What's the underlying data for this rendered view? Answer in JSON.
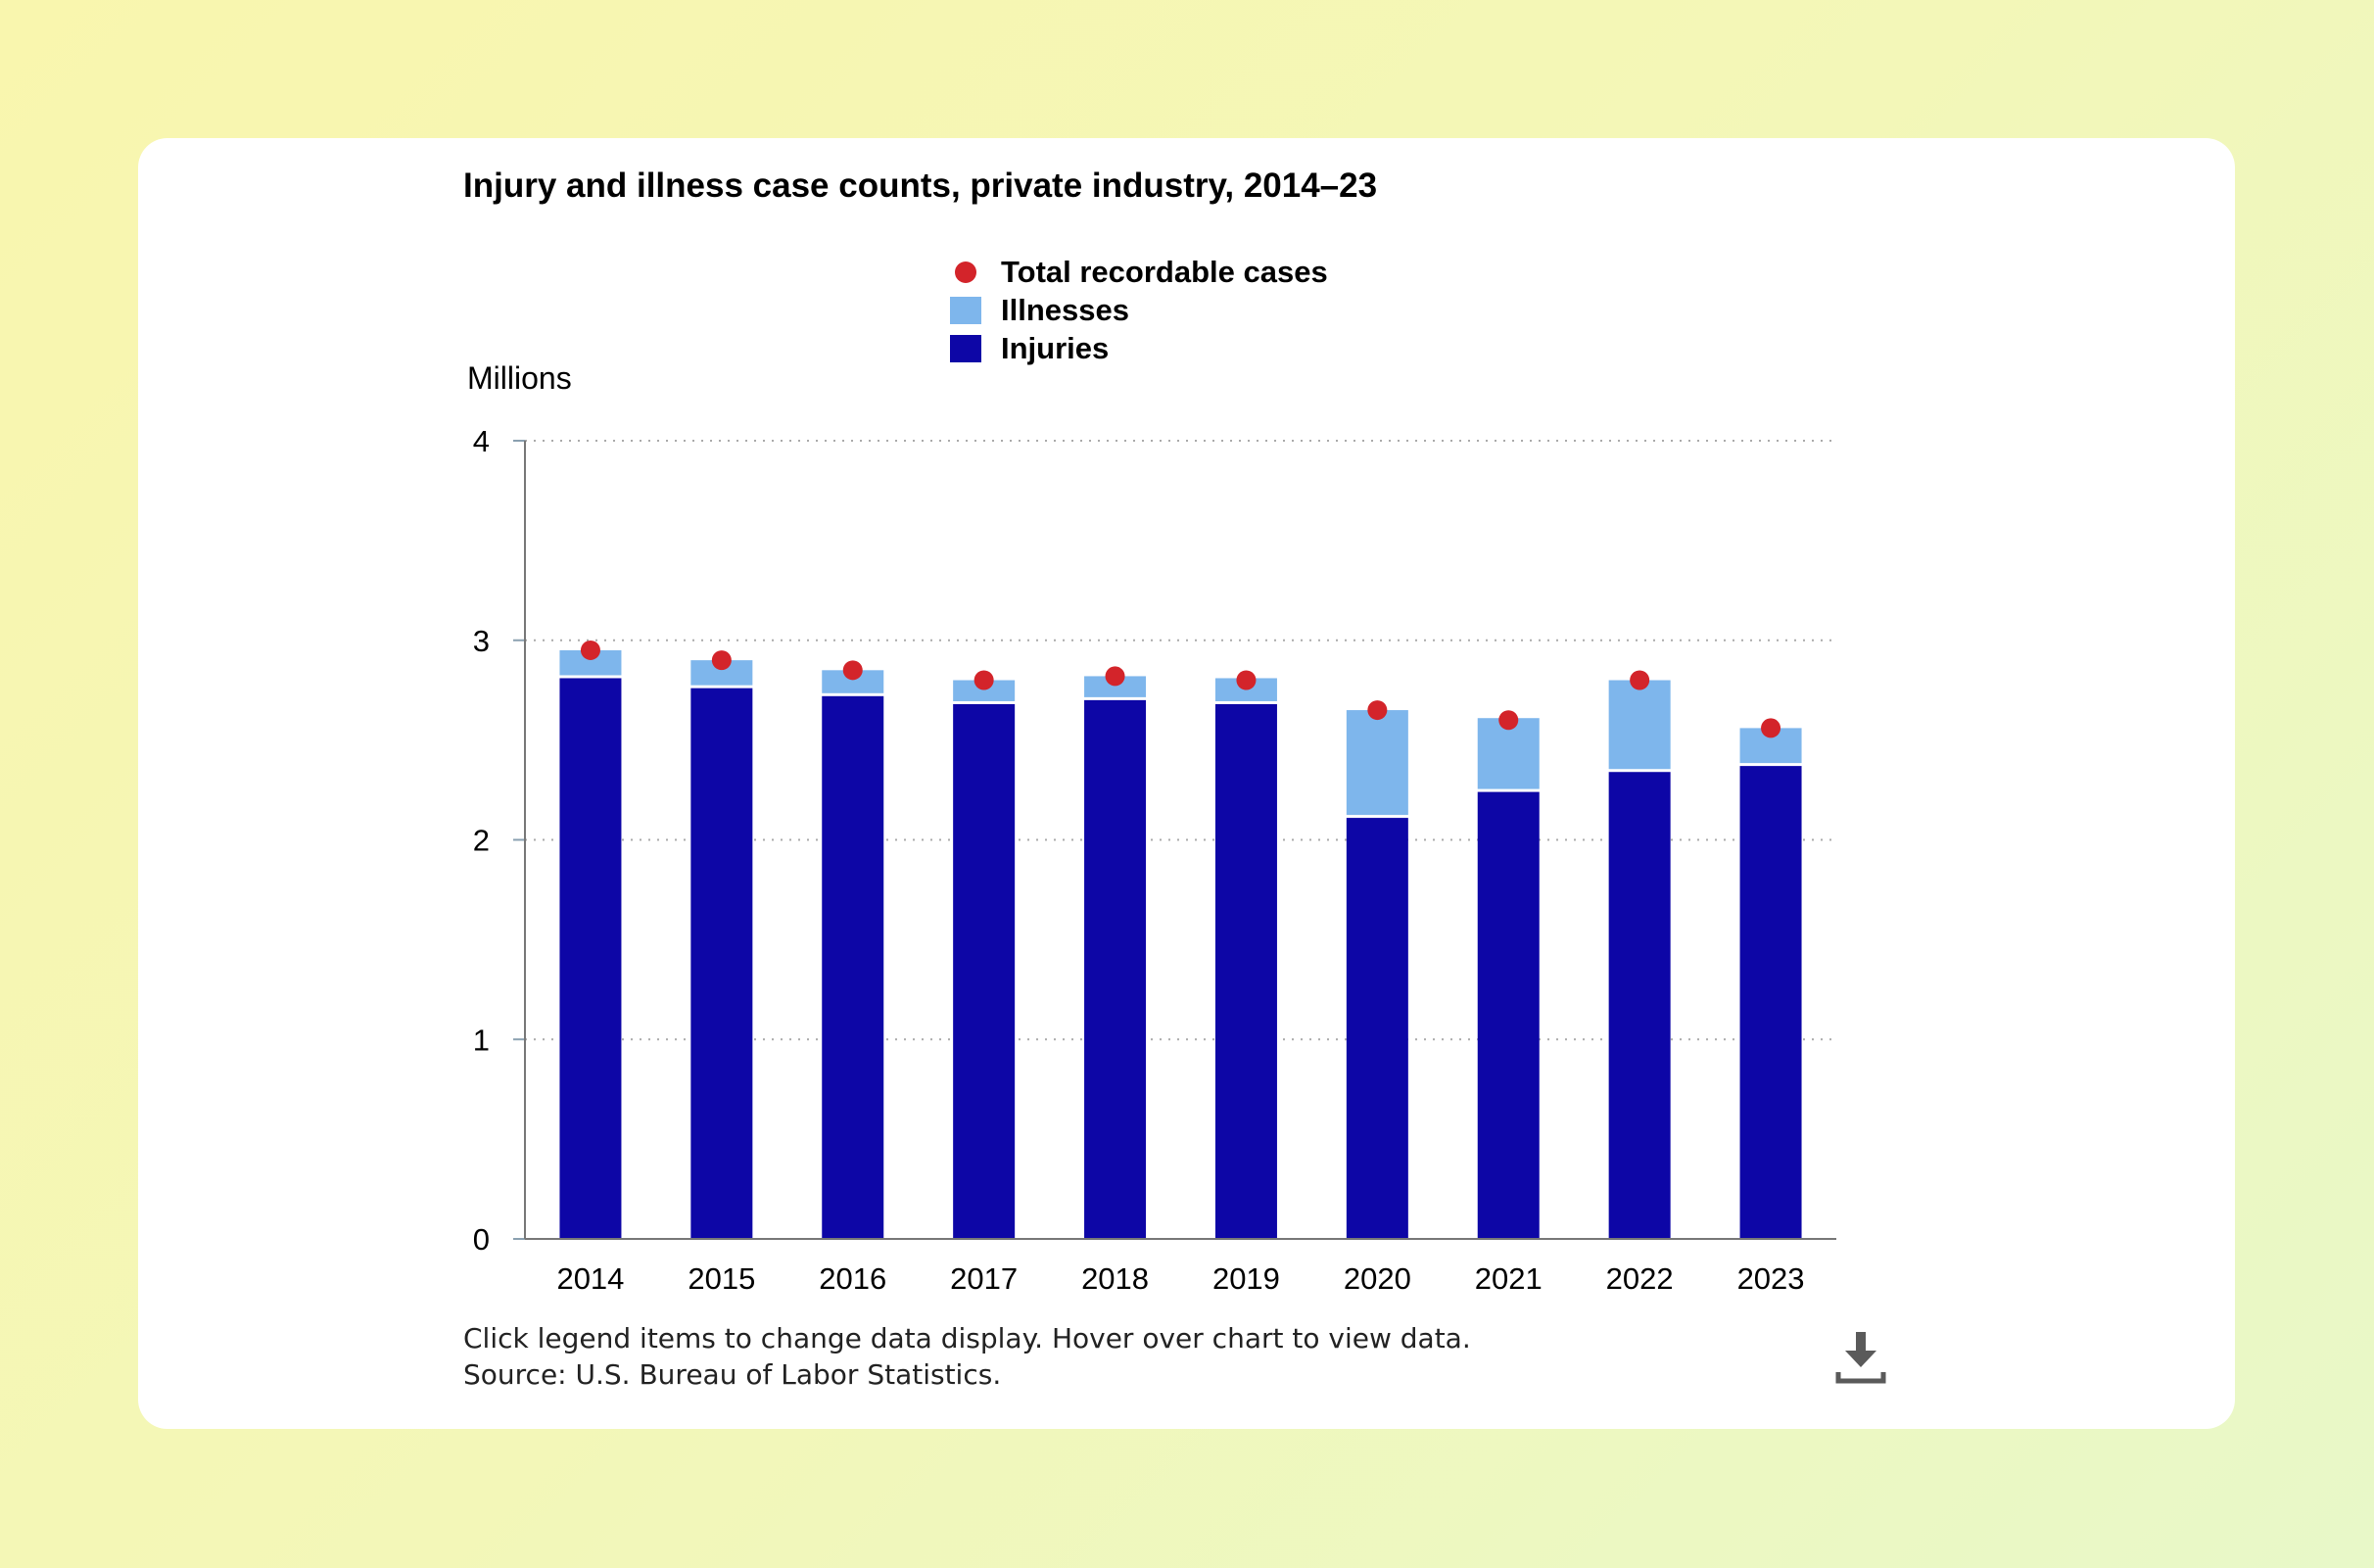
{
  "chart_data": {
    "type": "bar",
    "stacked": true,
    "title": "Injury and illness case counts, private industry, 2014–23",
    "ylabel": "Millions",
    "xlabel": "",
    "ylim": [
      0,
      4
    ],
    "yticks": [
      "0",
      "1",
      "2",
      "3",
      "4"
    ],
    "grid": true,
    "legend_placement": "top-center",
    "categories": [
      "2014",
      "2015",
      "2016",
      "2017",
      "2018",
      "2019",
      "2020",
      "2021",
      "2022",
      "2023"
    ],
    "series": [
      {
        "name": "Injuries",
        "kind": "bar",
        "color": "#0d06a6",
        "values": [
          2.81,
          2.76,
          2.72,
          2.68,
          2.7,
          2.68,
          2.11,
          2.24,
          2.34,
          2.37
        ]
      },
      {
        "name": "Illnesses",
        "kind": "bar",
        "color": "#7eb6ec",
        "values": [
          0.14,
          0.14,
          0.13,
          0.12,
          0.12,
          0.13,
          0.54,
          0.37,
          0.46,
          0.19
        ]
      },
      {
        "name": "Total recordable cases",
        "kind": "point",
        "color": "#d3242a",
        "values": [
          2.95,
          2.9,
          2.85,
          2.8,
          2.82,
          2.8,
          2.65,
          2.6,
          2.8,
          2.56
        ]
      }
    ]
  },
  "footnote": {
    "line1": "Click legend items to change data display. Hover over chart to view data.",
    "line2": "Source: U.S. Bureau of Labor Statistics."
  },
  "icons": {
    "download": "download-icon"
  }
}
